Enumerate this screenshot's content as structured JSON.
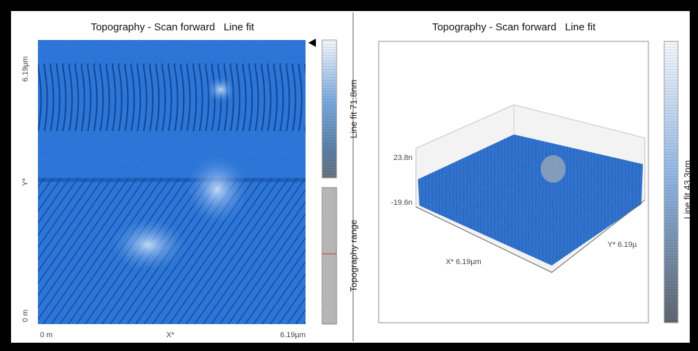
{
  "left_panel": {
    "title": "Topography - Scan forward   Line fit",
    "y_axis": {
      "top": "6.19µm",
      "label": "Y*",
      "bottom": "0 m"
    },
    "x_axis": {
      "left": "0 m",
      "label": "X*",
      "right": "6.19µm"
    },
    "colorbar_label": "Line fit 71.8nm",
    "range_label": "Topography range"
  },
  "right_panel": {
    "title": "Topography - Scan forward   Line fit",
    "z_top": "23.8n",
    "z_bottom": "-19.6n",
    "x_label": "X* 6.19µm",
    "y_label": "Y* 6.19µ",
    "colorbar_label": "Line fit 43.3nm"
  }
}
